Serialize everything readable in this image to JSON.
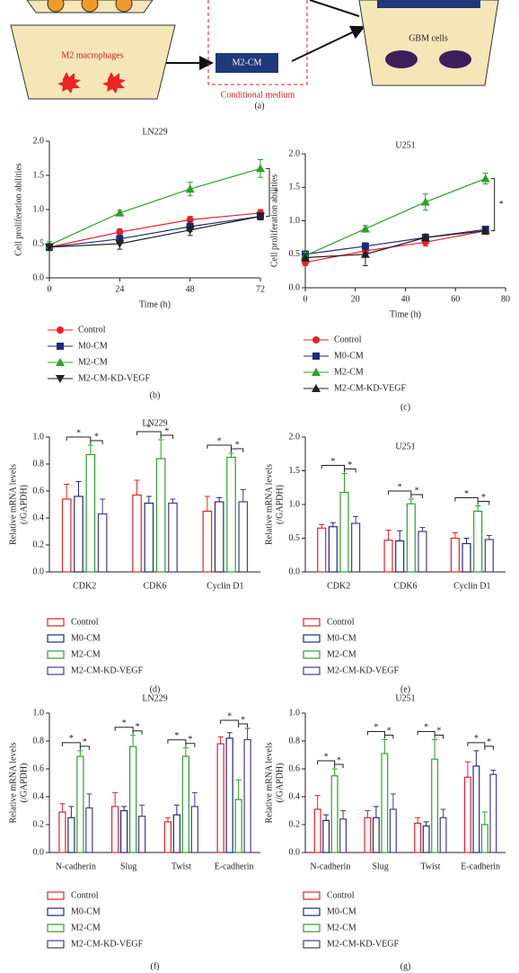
{
  "diagram": {
    "labels": [
      "M2 macrophages",
      "M2-CM",
      "Conditional medium",
      "GBM cells"
    ],
    "panel": "(a)"
  },
  "chart_data": [
    {
      "type": "line",
      "title": "LN229",
      "panel": "(b)",
      "xlabel": "Time (h)",
      "ylabel": [
        "Cell proliferation abilities"
      ],
      "x": [
        0,
        24,
        48,
        72
      ],
      "xlim": [
        0,
        72
      ],
      "xticks": [
        0,
        24,
        48,
        72
      ],
      "ylim": [
        0,
        2
      ],
      "yticks": [
        {
          "value": 0,
          "label": "0.0"
        },
        0.5,
        {
          "value": 1,
          "label": "1.0"
        },
        1.5,
        {
          "value": 2,
          "label": "2.0"
        }
      ],
      "annotations": [
        "*"
      ],
      "series": [
        {
          "name": "Control",
          "color": "#e8202a",
          "marker": "circle",
          "values": [
            0.45,
            0.67,
            0.85,
            0.95
          ],
          "errors": [
            0.05,
            0.05,
            0.05,
            0.05
          ]
        },
        {
          "name": "M0-CM",
          "color": "#1f2a7a",
          "marker": "square",
          "values": [
            0.45,
            0.57,
            0.75,
            0.9
          ],
          "errors": [
            0.03,
            0.05,
            0.07,
            0.05
          ]
        },
        {
          "name": "M2-CM",
          "color": "#2ca02c",
          "marker": "triangle-up",
          "values": [
            0.48,
            0.95,
            1.3,
            1.6
          ],
          "errors": [
            0.05,
            0.04,
            0.1,
            0.13
          ]
        },
        {
          "name": "M2-CM-KD-VEGF",
          "color": "#222222",
          "marker": "triangle-down",
          "values": [
            0.45,
            0.5,
            0.7,
            0.9
          ],
          "errors": [
            0.05,
            0.08,
            0.08,
            0.05
          ]
        }
      ]
    },
    {
      "type": "line",
      "title": "U251",
      "panel": "(c)",
      "xlabel": "Time (h)",
      "ylabel": [
        "Cell proliferation abilities"
      ],
      "x": [
        0,
        24,
        48,
        72
      ],
      "xlim": [
        0,
        80
      ],
      "xticks": [
        0,
        20,
        40,
        60,
        80
      ],
      "ylim": [
        0,
        2
      ],
      "yticks": [
        {
          "value": 0,
          "label": "0.0"
        },
        0.5,
        {
          "value": 1,
          "label": "1.0"
        },
        1.5,
        {
          "value": 2,
          "label": "2.0"
        }
      ],
      "annotations": [
        "*"
      ],
      "series": [
        {
          "name": "Control",
          "color": "#e8202a",
          "marker": "circle",
          "values": [
            0.38,
            0.55,
            0.68,
            0.85
          ],
          "errors": [
            0.05,
            0.06,
            0.06,
            0.05
          ]
        },
        {
          "name": "M0-CM",
          "color": "#1f2a7a",
          "marker": "square",
          "values": [
            0.5,
            0.62,
            0.75,
            0.87
          ],
          "errors": [
            0.05,
            0.05,
            0.05,
            0.05
          ]
        },
        {
          "name": "M2-CM",
          "color": "#2ca02c",
          "marker": "triangle-up",
          "values": [
            0.48,
            0.88,
            1.28,
            1.63
          ],
          "errors": [
            0.05,
            0.05,
            0.12,
            0.08
          ]
        },
        {
          "name": "M2-CM-KD-VEGF",
          "color": "#222222",
          "marker": "triangle-up",
          "values": [
            0.45,
            0.5,
            0.75,
            0.85
          ],
          "errors": [
            0.05,
            0.17,
            0.05,
            0.05
          ]
        }
      ]
    },
    {
      "type": "bar",
      "title": "LN229",
      "panel": "(d)",
      "ylabel": [
        "Relative mRNA levels",
        "(/GAPDH)"
      ],
      "categories": [
        "CDK2",
        "CDK6",
        "Cyclin D1"
      ],
      "ylim": [
        0,
        1
      ],
      "yticks": [
        {
          "value": 0,
          "label": "0.0"
        },
        0.2,
        0.4,
        0.6,
        0.8,
        {
          "value": 1,
          "label": "1.0"
        }
      ],
      "annotations": [
        "*",
        "*",
        "*",
        "*",
        "*",
        "*"
      ],
      "series": [
        {
          "name": "Control",
          "color": "#e8202a",
          "values": [
            0.54,
            0.57,
            0.45
          ],
          "errors": [
            0.11,
            0.11,
            0.11
          ]
        },
        {
          "name": "M0-CM",
          "color": "#1f2a7a",
          "values": [
            0.56,
            0.51,
            0.52
          ],
          "errors": [
            0.11,
            0.05,
            0.03
          ]
        },
        {
          "name": "M2-CM",
          "color": "#2ca02c",
          "values": [
            0.87,
            0.84,
            0.85
          ],
          "errors": [
            0.07,
            0.14,
            0.03
          ]
        },
        {
          "name": "M2-CM-KD-VEGF",
          "color": "#4b3a8c",
          "values": [
            0.43,
            0.51,
            0.52
          ],
          "errors": [
            0.11,
            0.03,
            0.09
          ]
        }
      ]
    },
    {
      "type": "bar",
      "title": "U251",
      "panel": "(e)",
      "ylabel": [
        "Relative mRNA levels",
        "(/GAPDH)"
      ],
      "categories": [
        "CDK2",
        "CDK6",
        "Cyclin D1"
      ],
      "ylim": [
        0,
        2
      ],
      "yticks": [
        {
          "value": 0,
          "label": "0.0"
        },
        0.5,
        {
          "value": 1,
          "label": "1.0"
        },
        1.5,
        {
          "value": 2,
          "label": "2.0"
        }
      ],
      "annotations": [
        "*",
        "*",
        "*",
        "*",
        "*",
        "*"
      ],
      "series": [
        {
          "name": "Control",
          "color": "#e8202a",
          "values": [
            0.65,
            0.47,
            0.5
          ],
          "errors": [
            0.05,
            0.15,
            0.08
          ]
        },
        {
          "name": "M0-CM",
          "color": "#1f2a7a",
          "values": [
            0.67,
            0.46,
            0.42
          ],
          "errors": [
            0.06,
            0.15,
            0.08
          ]
        },
        {
          "name": "M2-CM",
          "color": "#2ca02c",
          "values": [
            1.18,
            1.01,
            0.9
          ],
          "errors": [
            0.28,
            0.07,
            0.08
          ]
        },
        {
          "name": "M2-CM-KD-VEGF",
          "color": "#4b3a8c",
          "values": [
            0.72,
            0.6,
            0.48
          ],
          "errors": [
            0.1,
            0.06,
            0.06
          ]
        }
      ]
    },
    {
      "type": "bar",
      "title": "LN229",
      "panel": "(f)",
      "ylabel": [
        "Relative mRNA levels",
        "(/GAPDH)"
      ],
      "categories": [
        "N-cadherin",
        "Slug",
        "Twist",
        "E-cadherin"
      ],
      "ylim": [
        0,
        1
      ],
      "yticks": [
        {
          "value": 0,
          "label": "0.0"
        },
        0.2,
        0.4,
        0.6,
        0.8,
        {
          "value": 1,
          "label": "1.0"
        }
      ],
      "annotations": [
        "*",
        "*",
        "*",
        "*",
        "*",
        "*",
        "*",
        "*"
      ],
      "series": [
        {
          "name": "Control",
          "color": "#e8202a",
          "values": [
            0.29,
            0.33,
            0.22,
            0.78
          ],
          "errors": [
            0.06,
            0.1,
            0.03,
            0.05
          ]
        },
        {
          "name": "M0-CM",
          "color": "#1f2a7a",
          "values": [
            0.25,
            0.3,
            0.27,
            0.82
          ],
          "errors": [
            0.08,
            0.03,
            0.07,
            0.04
          ]
        },
        {
          "name": "M2-CM",
          "color": "#2ca02c",
          "values": [
            0.69,
            0.76,
            0.69,
            0.38
          ],
          "errors": [
            0.04,
            0.08,
            0.06,
            0.14
          ]
        },
        {
          "name": "M2-CM-KD-VEGF",
          "color": "#4b3a8c",
          "values": [
            0.32,
            0.26,
            0.33,
            0.81
          ],
          "errors": [
            0.1,
            0.08,
            0.1,
            0.08
          ]
        }
      ]
    },
    {
      "type": "bar",
      "title": "U251",
      "panel": "(g)",
      "ylabel": [
        "Relative mRNA levels",
        "(/GAPDH)"
      ],
      "categories": [
        "N-cadherin",
        "Slug",
        "Twist",
        "E-cadherin"
      ],
      "ylim": [
        0,
        1
      ],
      "yticks": [
        {
          "value": 0,
          "label": "0.0"
        },
        0.2,
        0.4,
        0.6,
        0.8,
        {
          "value": 1,
          "label": "1.0"
        }
      ],
      "annotations": [
        "*",
        "*",
        "*",
        "*",
        "*",
        "*",
        "*",
        "*"
      ],
      "series": [
        {
          "name": "Control",
          "color": "#e8202a",
          "values": [
            0.31,
            0.25,
            0.21,
            0.54
          ],
          "errors": [
            0.1,
            0.05,
            0.04,
            0.11
          ]
        },
        {
          "name": "M0-CM",
          "color": "#1f2a7a",
          "values": [
            0.23,
            0.25,
            0.19,
            0.62
          ],
          "errors": [
            0.04,
            0.08,
            0.03,
            0.11
          ]
        },
        {
          "name": "M2-CM",
          "color": "#2ca02c",
          "values": [
            0.55,
            0.71,
            0.67,
            0.2
          ],
          "errors": [
            0.05,
            0.1,
            0.14,
            0.09
          ]
        },
        {
          "name": "M2-CM-KD-VEGF",
          "color": "#4b3a8c",
          "values": [
            0.24,
            0.31,
            0.25,
            0.56
          ],
          "errors": [
            0.06,
            0.11,
            0.06,
            0.03
          ]
        }
      ]
    }
  ]
}
